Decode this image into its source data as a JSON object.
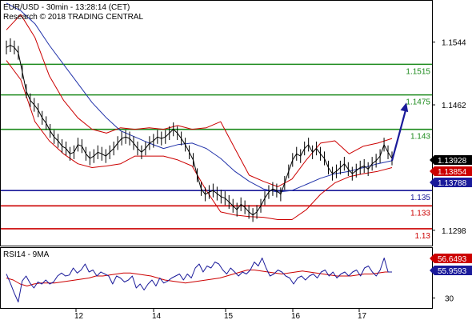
{
  "chart_data": {
    "type": "line",
    "title": "EUR/USD - 30min - 13:28:14 (CET)",
    "subtitle": "Research © 2018 TRADING CENTRAL",
    "x_tick_labels": [
      "12",
      "14",
      "15",
      "16",
      "17"
    ],
    "y_tick_labels": [
      "1.1544",
      "1.1462",
      "1.1298"
    ],
    "y_ticks": [
      1.1544,
      1.1462,
      1.1298
    ],
    "ylim": [
      1.1278,
      1.1598
    ],
    "price_tags": [
      {
        "label": "1.13928",
        "value": 1.13928,
        "color": "#000000"
      },
      {
        "label": "1.13854",
        "value": 1.13854,
        "color": "#cc0000"
      },
      {
        "label": "1.13788",
        "value": 1.13788,
        "color": "#1a1a9a"
      }
    ],
    "levels": [
      {
        "label": "1.1515",
        "value": 1.1515,
        "color": "#1b8a1b"
      },
      {
        "label": "1.1475",
        "value": 1.1475,
        "color": "#1b8a1b"
      },
      {
        "label": "1.143",
        "value": 1.143,
        "color": "#1b8a1b"
      },
      {
        "label": "1.135",
        "value": 1.135,
        "color": "#1a1a9a"
      },
      {
        "label": "1.133",
        "value": 1.133,
        "color": "#cc0000"
      },
      {
        "label": "1.13",
        "value": 1.13,
        "color": "#cc0000"
      }
    ],
    "price_series": [
      1.1537,
      1.154,
      1.1537,
      1.153,
      1.1505,
      1.148,
      1.1468,
      1.1462,
      1.1455,
      1.1445,
      1.1438,
      1.1428,
      1.142,
      1.1415,
      1.1408,
      1.1405,
      1.1398,
      1.14,
      1.141,
      1.1408,
      1.1398,
      1.1392,
      1.1395,
      1.14,
      1.1398,
      1.1395,
      1.14,
      1.1405,
      1.1412,
      1.1418,
      1.142,
      1.1418,
      1.1412,
      1.1405,
      1.14,
      1.1405,
      1.1412,
      1.1415,
      1.142,
      1.1418,
      1.142,
      1.1425,
      1.143,
      1.1425,
      1.1418,
      1.141,
      1.14,
      1.139,
      1.137,
      1.1352,
      1.1345,
      1.1348,
      1.135,
      1.1346,
      1.1342,
      1.134,
      1.1335,
      1.133,
      1.1325,
      1.1332,
      1.1328,
      1.1322,
      1.1318,
      1.1322,
      1.133,
      1.134,
      1.1348,
      1.1352,
      1.135,
      1.1345,
      1.136,
      1.1375,
      1.139,
      1.1398,
      1.1395,
      1.1405,
      1.141,
      1.14,
      1.1405,
      1.1398,
      1.1392,
      1.138,
      1.1372,
      1.1375,
      1.138,
      1.1385,
      1.1378,
      1.1372,
      1.1376,
      1.138,
      1.1382,
      1.1378,
      1.1385,
      1.1389,
      1.1395,
      1.141,
      1.14,
      1.1392
    ],
    "price_x_range": [
      8,
      490
    ],
    "moving_average": [
      1.1595,
      1.1585,
      1.1568,
      1.154,
      1.1515,
      1.149,
      1.1465,
      1.1445,
      1.1428,
      1.142,
      1.1412,
      1.1405,
      1.141,
      1.1412,
      1.1405,
      1.1392,
      1.1375,
      1.1362,
      1.1352,
      1.1348,
      1.135,
      1.1358,
      1.1366,
      1.1372,
      1.1375,
      1.138,
      1.1385,
      1.1389
    ],
    "moving_average_x_range": [
      8,
      490
    ],
    "bollinger_upper": [
      1.156,
      1.158,
      1.155,
      1.15,
      1.1468,
      1.1445,
      1.143,
      1.1425,
      1.1432,
      1.143,
      1.1432,
      1.143,
      1.1435,
      1.143,
      1.1432,
      1.144,
      1.1405,
      1.137,
      1.1362,
      1.1355,
      1.1365,
      1.139,
      1.1412,
      1.1415,
      1.1398,
      1.1408,
      1.1412,
      1.1418
    ],
    "bollinger_lower": [
      1.152,
      1.1495,
      1.144,
      1.1415,
      1.1398,
      1.1385,
      1.138,
      1.1382,
      1.1385,
      1.1395,
      1.1395,
      1.1395,
      1.139,
      1.1382,
      1.135,
      1.1322,
      1.1318,
      1.1316,
      1.1315,
      1.1312,
      1.1312,
      1.1325,
      1.1345,
      1.136,
      1.1368,
      1.1372,
      1.1375,
      1.138
    ],
    "bollinger_x_range": [
      8,
      490
    ],
    "forecast_arrow": {
      "from": [
        490,
        1.1389
      ],
      "to": [
        508,
        1.1465
      ]
    },
    "indicator": {
      "title": "RSI14 - 9MA",
      "ylim": [
        20,
        80
      ],
      "y_tick_labels": [
        "30"
      ],
      "y_ticks": [
        30
      ],
      "tags": [
        {
          "label": "56.6493",
          "value": 56.6493,
          "color": "#cc0000"
        },
        {
          "label": "55.9593",
          "value": 55.9593,
          "color": "#1a1a9a"
        }
      ],
      "rsi_series": [
        54,
        45,
        35,
        26,
        47,
        52,
        45,
        40,
        46,
        44,
        48,
        44,
        46,
        52,
        55,
        52,
        53,
        60,
        55,
        58,
        64,
        56,
        58,
        52,
        56,
        54,
        52,
        44,
        52,
        50,
        46,
        48,
        52,
        40,
        44,
        38,
        44,
        48,
        42,
        50,
        45,
        47,
        50,
        52,
        54,
        48,
        54,
        50,
        60,
        64,
        56,
        62,
        60,
        66,
        64,
        58,
        54,
        60,
        56,
        52,
        56,
        54,
        58,
        66,
        62,
        70,
        60,
        52,
        54,
        58,
        56,
        52,
        50,
        44,
        50,
        52,
        48,
        52,
        54,
        50,
        56,
        58,
        52,
        56,
        50,
        54,
        56,
        52,
        56,
        58,
        52,
        60,
        62,
        56,
        52,
        58,
        70,
        56,
        56
      ],
      "rsi_x_range": [
        8,
        490
      ],
      "ma_series": [
        50,
        48,
        44,
        42,
        44,
        45,
        45,
        45,
        46,
        47,
        48,
        49,
        50,
        52,
        52,
        53,
        54,
        55,
        55,
        54,
        53,
        52,
        50,
        48,
        47,
        46,
        45,
        46,
        47,
        48,
        49,
        50,
        52,
        54,
        56,
        58,
        58,
        57,
        56,
        55,
        54,
        55,
        56,
        57,
        56,
        55,
        54,
        53,
        52,
        52,
        52,
        53,
        54,
        54,
        55,
        56,
        56
      ],
      "ma_x_range": [
        8,
        490
      ]
    }
  }
}
